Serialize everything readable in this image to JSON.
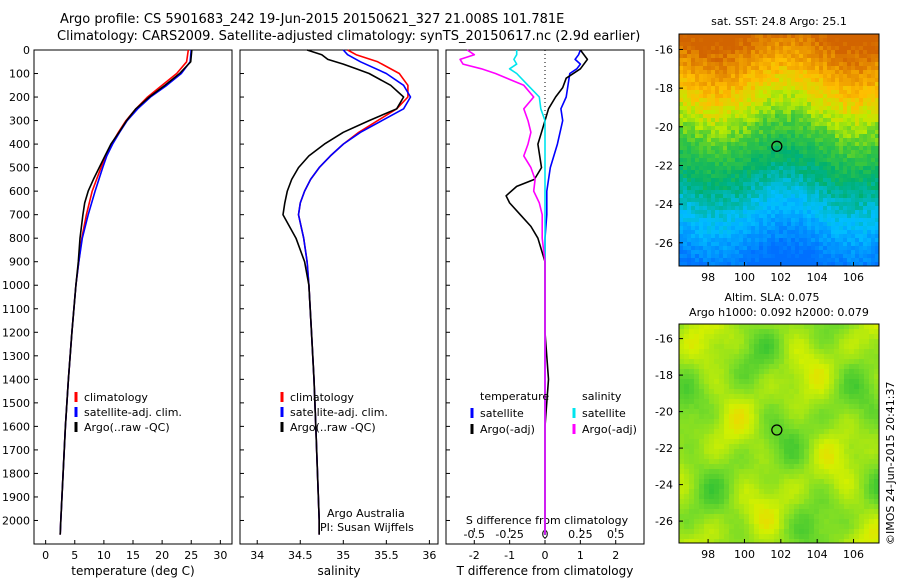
{
  "header": {
    "line1": "Argo profile: CS 5901683_242 19-Jun-2015 20150621_327 21.008S 101.781E",
    "line2": "Climatology: CARS2009. Satellite-adjusted climatology: synTS_20150617.nc (2.9d earlier)"
  },
  "map_titles": {
    "sst": "sat. SST: 24.8 Argo: 25.1",
    "sla1": "Altim. SLA: 0.075",
    "sla2": "Argo h1000: 0.092 h2000: 0.079"
  },
  "credit": "©IMOS 24-Jun-2015 20:41:37",
  "annotations": {
    "argo": "Argo Australia",
    "pi": "PI: Susan Wijffels"
  },
  "colors": {
    "climatology": "#ff0000",
    "satellite": "#0000ff",
    "argo": "#000000",
    "sal_sat": "#00e5ee",
    "sal_argo": "#ff00ff"
  },
  "chart_data": [
    {
      "type": "line",
      "xlabel": "temperature (deg C)",
      "xticks": [
        0,
        5,
        10,
        15,
        20,
        25,
        30
      ],
      "xlim": [
        -2,
        32
      ],
      "ylim": [
        2100,
        0
      ],
      "yticks": [
        0,
        100,
        200,
        300,
        400,
        500,
        600,
        700,
        800,
        900,
        1000,
        1100,
        1200,
        1300,
        1400,
        1500,
        1600,
        1700,
        1800,
        1900,
        2000
      ],
      "legend": [
        "climatology",
        "satellite-adj. clim.",
        "Argo(..raw -QC)"
      ],
      "series": [
        {
          "name": "climatology",
          "color": "#ff0000",
          "depth": [
            0,
            50,
            100,
            150,
            200,
            250,
            300,
            350,
            400,
            450,
            500,
            600,
            700,
            800,
            900,
            1000,
            1200,
            1400,
            1600,
            1800,
            2000,
            2060
          ],
          "values": [
            24.5,
            24.2,
            22.5,
            20.0,
            17.5,
            15.5,
            13.8,
            12.5,
            11.3,
            10.3,
            9.5,
            8.0,
            7.0,
            6.2,
            5.7,
            5.2,
            4.5,
            3.9,
            3.4,
            3.0,
            2.6,
            2.5
          ]
        },
        {
          "name": "satellite-adj. clim.",
          "color": "#0000ff",
          "depth": [
            0,
            50,
            100,
            150,
            200,
            250,
            300,
            350,
            400,
            450,
            500,
            600,
            700,
            800,
            900,
            1000,
            1200,
            1400,
            1600,
            1800,
            2000,
            2060
          ],
          "values": [
            25.0,
            24.8,
            23.3,
            20.8,
            18.0,
            15.8,
            14.0,
            12.7,
            11.5,
            10.5,
            9.8,
            8.5,
            7.3,
            6.3,
            5.7,
            5.2,
            4.5,
            3.9,
            3.4,
            3.0,
            2.6,
            2.5
          ]
        },
        {
          "name": "Argo(..raw -QC)",
          "color": "#000000",
          "depth": [
            0,
            50,
            100,
            150,
            200,
            250,
            300,
            350,
            400,
            450,
            500,
            550,
            600,
            650,
            700,
            800,
            900,
            1000,
            1200,
            1400,
            1600,
            1800,
            2000,
            2060
          ],
          "values": [
            25.1,
            24.9,
            23.0,
            20.5,
            17.8,
            15.5,
            13.9,
            12.6,
            11.2,
            10.2,
            9.2,
            8.2,
            7.3,
            6.7,
            6.4,
            5.9,
            5.6,
            5.2,
            4.5,
            3.9,
            3.4,
            3.0,
            2.6,
            2.5
          ]
        }
      ]
    },
    {
      "type": "line",
      "xlabel": "salinity",
      "xticks": [
        34,
        34.5,
        35,
        35.5,
        36
      ],
      "xlim": [
        33.8,
        36.1
      ],
      "ylim": [
        2100,
        0
      ],
      "legend": [
        "climatology",
        "satellite-adj. clim.",
        "Argo(..raw -QC)"
      ],
      "series": [
        {
          "name": "climatology",
          "color": "#ff0000",
          "depth": [
            0,
            20,
            50,
            100,
            150,
            200,
            250,
            300,
            350,
            400,
            450,
            500,
            550,
            600,
            650,
            700,
            800,
            900,
            1000,
            1200,
            1400,
            1600,
            1800,
            2000,
            2060
          ],
          "values": [
            35.05,
            35.15,
            35.4,
            35.65,
            35.75,
            35.75,
            35.62,
            35.4,
            35.18,
            35.0,
            34.85,
            34.72,
            34.62,
            34.55,
            34.5,
            34.48,
            34.54,
            34.58,
            34.6,
            34.63,
            34.66,
            34.68,
            34.7,
            34.72,
            34.72
          ]
        },
        {
          "name": "satellite-adj. clim.",
          "color": "#0000ff",
          "depth": [
            0,
            20,
            50,
            100,
            150,
            200,
            250,
            300,
            350,
            400,
            450,
            500,
            550,
            600,
            650,
            700,
            800,
            900,
            1000,
            1200,
            1400,
            1600,
            1800,
            2000,
            2060
          ],
          "values": [
            35.0,
            35.05,
            35.2,
            35.5,
            35.7,
            35.78,
            35.7,
            35.45,
            35.2,
            35.0,
            34.85,
            34.72,
            34.62,
            34.55,
            34.5,
            34.48,
            34.54,
            34.58,
            34.6,
            34.63,
            34.66,
            34.68,
            34.7,
            34.72,
            34.72
          ]
        },
        {
          "name": "Argo(..raw -QC)",
          "color": "#000000",
          "depth": [
            0,
            20,
            40,
            60,
            80,
            100,
            150,
            200,
            250,
            300,
            350,
            400,
            450,
            500,
            550,
            600,
            650,
            700,
            800,
            900,
            1000,
            1200,
            1400,
            1600,
            1800,
            2000,
            2060
          ],
          "values": [
            34.58,
            34.75,
            34.82,
            35.0,
            35.15,
            35.3,
            35.55,
            35.7,
            35.62,
            35.3,
            35.0,
            34.78,
            34.6,
            34.48,
            34.4,
            34.35,
            34.32,
            34.3,
            34.45,
            34.55,
            34.6,
            34.63,
            34.66,
            34.68,
            34.7,
            34.72,
            34.72
          ]
        }
      ]
    },
    {
      "type": "line",
      "title": "S difference from climatology",
      "xlabel": "T difference from climatology",
      "xticks": [
        -2,
        -1,
        0,
        1,
        2
      ],
      "s_ticks": [
        -0.5,
        -0.25,
        0,
        0.25,
        0.5
      ],
      "xlim": [
        -2.8,
        2.8
      ],
      "ylim": [
        2100,
        0
      ],
      "legend_headers": [
        "temperature",
        "salinity"
      ],
      "legend": [
        "satellite",
        "Argo(-adj)",
        "satellite",
        "Argo(-adj)"
      ],
      "series": [
        {
          "name": "satellite",
          "quantity": "temperature",
          "color": "#0000ff",
          "depth": [
            0,
            20,
            40,
            60,
            80,
            100,
            150,
            200,
            250,
            300,
            400,
            500,
            600,
            700,
            800,
            1000,
            1400,
            2000,
            2060
          ],
          "values": [
            1.0,
            0.95,
            0.85,
            1.0,
            0.9,
            0.7,
            0.65,
            0.6,
            0.45,
            0.5,
            0.35,
            0.15,
            0.05,
            0.05,
            0.0,
            0.0,
            0.0,
            0.0,
            0.0
          ]
        },
        {
          "name": "Argo(-adj)",
          "quantity": "temperature",
          "color": "#000000",
          "depth": [
            0,
            40,
            80,
            120,
            160,
            200,
            250,
            300,
            350,
            400,
            450,
            500,
            550,
            580,
            620,
            650,
            700,
            750,
            800,
            900,
            1000,
            1200,
            1400,
            1600,
            2000,
            2060
          ],
          "values": [
            1.0,
            1.2,
            1.0,
            0.6,
            0.5,
            0.3,
            0.1,
            0.0,
            -0.1,
            -0.2,
            -0.15,
            -0.1,
            -0.3,
            -0.8,
            -1.1,
            -1.0,
            -0.7,
            -0.4,
            -0.2,
            0.0,
            0.0,
            0.0,
            0.1,
            0.0,
            0.0,
            0.0
          ]
        },
        {
          "name": "satellite",
          "quantity": "salinity",
          "color": "#00e5ee",
          "depth": [
            0,
            20,
            40,
            60,
            80,
            100,
            150,
            200,
            250,
            300,
            400,
            500,
            600,
            800,
            1000,
            1400,
            2000,
            2060
          ],
          "values": [
            -0.2,
            -0.2,
            -0.22,
            -0.2,
            -0.25,
            -0.2,
            -0.12,
            -0.04,
            -0.03,
            0.0,
            0.0,
            0.0,
            0.0,
            0.0,
            0.0,
            0.0,
            0.0,
            0.0
          ]
        },
        {
          "name": "Argo(-adj)",
          "quantity": "salinity",
          "color": "#ff00ff",
          "depth": [
            0,
            20,
            40,
            60,
            80,
            100,
            150,
            200,
            250,
            300,
            350,
            400,
            450,
            500,
            550,
            600,
            650,
            700,
            800,
            900,
            1000,
            1400,
            2000,
            2060
          ],
          "values": [
            -0.55,
            -0.5,
            -0.6,
            -0.58,
            -0.45,
            -0.35,
            -0.15,
            -0.08,
            -0.15,
            -0.12,
            -0.1,
            -0.12,
            -0.15,
            -0.1,
            -0.07,
            -0.08,
            -0.04,
            -0.02,
            -0.02,
            0.0,
            0.0,
            0.0,
            0.0,
            0.0
          ]
        }
      ]
    },
    {
      "type": "heatmap",
      "title": "sat. SST: 24.8 Argo: 25.1",
      "xticks": [
        98,
        100,
        102,
        104,
        106
      ],
      "yticks": [
        -16,
        -18,
        -20,
        -22,
        -24,
        -26
      ],
      "xlim": [
        96.4,
        107.4
      ],
      "ylim": [
        -27.2,
        -15.2
      ],
      "marker": {
        "lon": 101.781,
        "lat": -21.008
      }
    },
    {
      "type": "heatmap",
      "title": "Altim. SLA: 0.075 / Argo h1000: 0.092 h2000: 0.079",
      "xticks": [
        98,
        100,
        102,
        104,
        106
      ],
      "yticks": [
        -16,
        -18,
        -20,
        -22,
        -24,
        -26
      ],
      "xlim": [
        96.4,
        107.4
      ],
      "ylim": [
        -27.2,
        -15.2
      ],
      "marker": {
        "lon": 101.781,
        "lat": -21.008
      }
    }
  ]
}
